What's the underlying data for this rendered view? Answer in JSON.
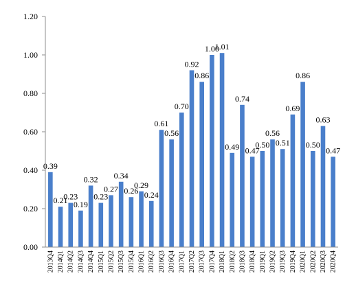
{
  "chart_data": {
    "type": "bar",
    "categories": [
      "2013Q4",
      "2014Q1",
      "2014Q2",
      "2014Q3",
      "2014Q4",
      "2015Q1",
      "2015Q2",
      "2015Q3",
      "2015Q4",
      "2016Q1",
      "2016Q2",
      "2016Q3",
      "2016Q4",
      "2017Q1",
      "2017Q2",
      "2017Q3",
      "2017Q4",
      "2018Q1",
      "2018Q2",
      "2018Q3",
      "2018Q4",
      "2019Q1",
      "2019Q2",
      "2019Q3",
      "2019Q4",
      "2020Q1",
      "2020Q2",
      "2020Q3",
      "2020Q4"
    ],
    "values": [
      0.39,
      0.21,
      0.23,
      0.19,
      0.32,
      0.23,
      0.27,
      0.34,
      0.26,
      0.29,
      0.24,
      0.61,
      0.56,
      0.7,
      0.92,
      0.86,
      1.0,
      1.01,
      0.49,
      0.74,
      0.47,
      0.5,
      0.56,
      0.51,
      0.69,
      0.86,
      0.5,
      0.63,
      0.47
    ],
    "data_labels": [
      "0.39",
      "0.21",
      "0.23",
      "0.19",
      "0.32",
      "0.23",
      "0.27",
      "0.34",
      "0.26",
      "0.29",
      "0.24",
      "0.61",
      "0.56",
      "0.70",
      "0.92",
      "0.86",
      "1.00",
      "1.01",
      "0.49",
      "0.74",
      "0.47",
      "0.50",
      "0.56",
      "0.51",
      "0.69",
      "0.86",
      "0.50",
      "0.63",
      "0.47"
    ],
    "ylim": [
      0,
      1.2
    ],
    "yticks": [
      "0.00",
      "0.20",
      "0.40",
      "0.60",
      "0.80",
      "1.00",
      "1.20"
    ],
    "ytick_values": [
      0,
      0.2,
      0.4,
      0.6,
      0.8,
      1.0,
      1.2
    ],
    "grid": false,
    "bar_color": "#4a7fcb",
    "axis_color": "#8c8c8c"
  }
}
